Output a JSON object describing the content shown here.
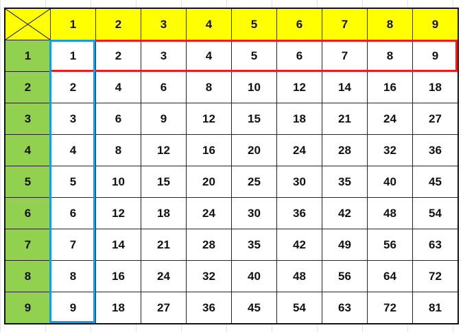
{
  "table": {
    "column_headers": [
      "1",
      "2",
      "3",
      "4",
      "5",
      "6",
      "7",
      "8",
      "9"
    ],
    "rows": [
      {
        "header": "1",
        "cells": [
          "1",
          "2",
          "3",
          "4",
          "5",
          "6",
          "7",
          "8",
          "9"
        ]
      },
      {
        "header": "2",
        "cells": [
          "2",
          "4",
          "6",
          "8",
          "10",
          "12",
          "14",
          "16",
          "18"
        ]
      },
      {
        "header": "3",
        "cells": [
          "3",
          "6",
          "9",
          "12",
          "15",
          "18",
          "21",
          "24",
          "27"
        ]
      },
      {
        "header": "4",
        "cells": [
          "4",
          "8",
          "12",
          "16",
          "20",
          "24",
          "28",
          "32",
          "36"
        ]
      },
      {
        "header": "5",
        "cells": [
          "5",
          "10",
          "15",
          "20",
          "25",
          "30",
          "35",
          "40",
          "45"
        ]
      },
      {
        "header": "6",
        "cells": [
          "6",
          "12",
          "18",
          "24",
          "30",
          "36",
          "42",
          "48",
          "54"
        ]
      },
      {
        "header": "7",
        "cells": [
          "7",
          "14",
          "21",
          "28",
          "35",
          "42",
          "49",
          "56",
          "63"
        ]
      },
      {
        "header": "8",
        "cells": [
          "8",
          "16",
          "24",
          "32",
          "40",
          "48",
          "56",
          "64",
          "72"
        ]
      },
      {
        "header": "9",
        "cells": [
          "9",
          "18",
          "27",
          "36",
          "45",
          "54",
          "63",
          "72",
          "81"
        ]
      }
    ]
  },
  "colors": {
    "column_header_bg": "#ffff00",
    "row_header_bg": "#92d050",
    "corner_bg": "#808080",
    "row_highlight": "#ee1c1c",
    "column_highlight": "#1a9be0"
  },
  "icons": {
    "corner": "diagonal-cross-icon"
  }
}
